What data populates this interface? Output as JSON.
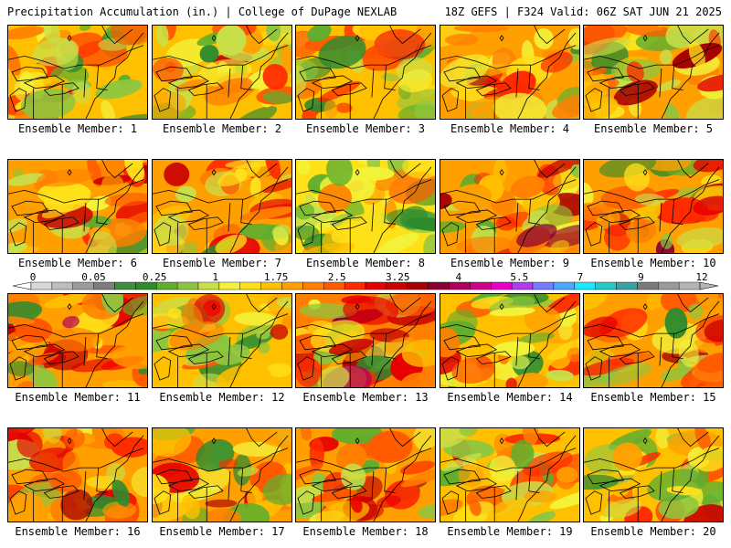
{
  "header": {
    "title": "Precipitation Accumulation (in.) | College of DuPage NEXLAB",
    "run_info": "18Z GEFS | F324 Valid: 06Z SAT JUN 21 2025"
  },
  "panels": [
    {
      "caption": "Ensemble Member: 1",
      "seed": 11,
      "wet": 0.25
    },
    {
      "caption": "Ensemble Member: 2",
      "seed": 22,
      "wet": 0.35
    },
    {
      "caption": "Ensemble Member: 3",
      "seed": 33,
      "wet": 0.15
    },
    {
      "caption": "Ensemble Member: 4",
      "seed": 44,
      "wet": 0.45
    },
    {
      "caption": "Ensemble Member: 5",
      "seed": 55,
      "wet": 0.45
    },
    {
      "caption": "Ensemble Member: 6",
      "seed": 66,
      "wet": 0.45
    },
    {
      "caption": "Ensemble Member: 7",
      "seed": 77,
      "wet": 0.55
    },
    {
      "caption": "Ensemble Member: 8",
      "seed": 88,
      "wet": 0.05
    },
    {
      "caption": "Ensemble Member: 9",
      "seed": 99,
      "wet": 0.55
    },
    {
      "caption": "Ensemble Member: 10",
      "seed": 110,
      "wet": 0.6
    },
    {
      "caption": "Ensemble Member: 11",
      "seed": 121,
      "wet": 0.55
    },
    {
      "caption": "Ensemble Member: 12",
      "seed": 132,
      "wet": 0.25
    },
    {
      "caption": "Ensemble Member: 13",
      "seed": 143,
      "wet": 0.7
    },
    {
      "caption": "Ensemble Member: 14",
      "seed": 154,
      "wet": 0.35
    },
    {
      "caption": "Ensemble Member: 15",
      "seed": 165,
      "wet": 0.5
    },
    {
      "caption": "Ensemble Member: 16",
      "seed": 176,
      "wet": 0.6
    },
    {
      "caption": "Ensemble Member: 17",
      "seed": 187,
      "wet": 0.5
    },
    {
      "caption": "Ensemble Member: 18",
      "seed": 198,
      "wet": 0.55
    },
    {
      "caption": "Ensemble Member: 19",
      "seed": 209,
      "wet": 0.15
    },
    {
      "caption": "Ensemble Member: 20",
      "seed": 220,
      "wet": 0.35
    }
  ],
  "colorbar": {
    "tick_labels": [
      "0",
      "0.05",
      "0.25",
      "1",
      "1.75",
      "2.5",
      "3.25",
      "4",
      "5.5",
      "7",
      "9",
      "12"
    ],
    "colors": [
      "#d8d8d8",
      "#bdbdbd",
      "#9c9c9c",
      "#7d7d7d",
      "#3e8e3e",
      "#2e8b2e",
      "#5fae2e",
      "#8cc63f",
      "#c8e04a",
      "#f2f23a",
      "#ffe11a",
      "#ffc000",
      "#ffa000",
      "#ff7f00",
      "#ff5a00",
      "#ff2a00",
      "#e60000",
      "#c80000",
      "#a80000",
      "#8a0033",
      "#b0005a",
      "#d0008a",
      "#e600c8",
      "#b03cf0",
      "#7a7aff",
      "#4aa8ff",
      "#1ee6ff",
      "#26c8c8",
      "#3aa0a0",
      "#7a7a7a",
      "#9a9a9a",
      "#b4b4b4"
    ]
  }
}
